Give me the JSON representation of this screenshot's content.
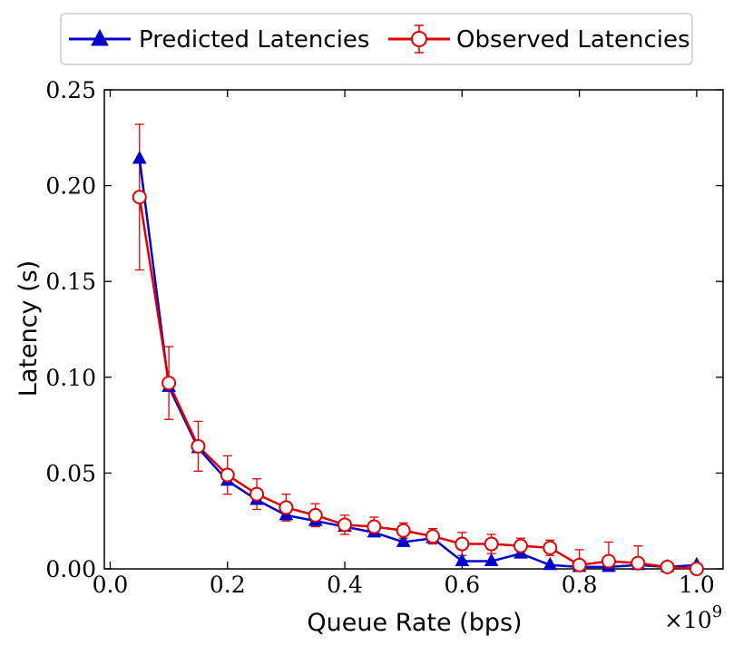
{
  "chart_data": {
    "type": "line",
    "xlabel": "Queue Rate (bps)",
    "ylabel": "Latency (s)",
    "x_multiplier_label": "×10",
    "x_multiplier_exponent": "9",
    "xlim": [
      -0.01,
      1.045
    ],
    "ylim": [
      0,
      0.25
    ],
    "x_ticks": [
      0.0,
      0.2,
      0.4,
      0.6,
      0.8,
      1.0
    ],
    "x_tick_labels": [
      "0.0",
      "0.2",
      "0.4",
      "0.6",
      "0.8",
      "1.0"
    ],
    "y_ticks": [
      0.0,
      0.05,
      0.1,
      0.15,
      0.2,
      0.25
    ],
    "y_tick_labels": [
      "0.00",
      "0.05",
      "0.10",
      "0.15",
      "0.20",
      "0.25"
    ],
    "grid": false,
    "legend_position": "top-center-outside",
    "x": [
      0.05,
      0.1,
      0.15,
      0.2,
      0.25,
      0.3,
      0.35,
      0.4,
      0.45,
      0.5,
      0.55,
      0.6,
      0.65,
      0.7,
      0.75,
      0.8,
      0.85,
      0.9,
      0.95,
      1.0
    ],
    "series": [
      {
        "name": "Predicted Latencies",
        "color": "#0000cc",
        "marker": "triangle",
        "values": [
          0.214,
          0.095,
          0.063,
          0.046,
          0.036,
          0.028,
          0.025,
          0.022,
          0.019,
          0.014,
          0.016,
          0.004,
          0.004,
          0.008,
          0.002,
          0.001,
          0.001,
          0.002,
          0.001,
          0.002
        ]
      },
      {
        "name": "Observed Latencies",
        "color": "#dd0000",
        "marker": "circle",
        "values": [
          0.194,
          0.097,
          0.064,
          0.049,
          0.039,
          0.032,
          0.028,
          0.023,
          0.022,
          0.02,
          0.017,
          0.013,
          0.013,
          0.012,
          0.011,
          0.002,
          0.004,
          0.003,
          0.001,
          0.0
        ],
        "errors": [
          0.038,
          0.019,
          0.013,
          0.01,
          0.008,
          0.007,
          0.006,
          0.005,
          0.005,
          0.004,
          0.004,
          0.006,
          0.005,
          0.004,
          0.004,
          0.008,
          0.01,
          0.009,
          0.001,
          0.001
        ]
      }
    ]
  }
}
